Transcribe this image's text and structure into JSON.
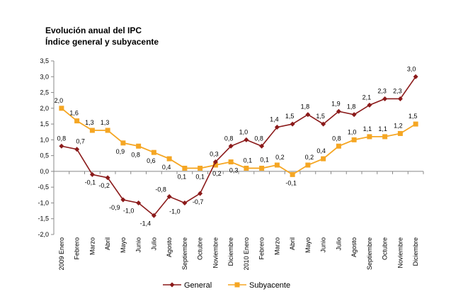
{
  "chart_data": {
    "type": "line",
    "title": "Evolución anual del IPC",
    "subtitle": "Índice general y subyacente",
    "categories": [
      "2009 Enero",
      "Febrero",
      "Marzo",
      "Abril",
      "Mayo",
      "Junio",
      "Julio",
      "Agosto",
      "Septiembre",
      "Octubre",
      "Noviembre",
      "Diciembre",
      "2010 Enero",
      "Febrero",
      "Marzo",
      "Abril",
      "Mayo",
      "Junio",
      "Julio",
      "Agosto",
      "Septiembre",
      "Octubre",
      "Noviembre",
      "Diciembre"
    ],
    "series": [
      {
        "name": "General",
        "color": "#8B1A1A",
        "marker": "diamond",
        "values": [
          0.8,
          0.7,
          -0.1,
          -0.2,
          -0.9,
          -1.0,
          -1.4,
          -0.8,
          -1.0,
          -0.7,
          0.3,
          0.8,
          1.0,
          0.8,
          1.4,
          1.5,
          1.8,
          1.5,
          1.9,
          1.8,
          2.1,
          2.3,
          2.3,
          3.0
        ],
        "labels": [
          "0,8",
          "0,7",
          "-0,1",
          "-0,2",
          "-0,9",
          "-1,0",
          "-1,4",
          "-0,8",
          "-1,0",
          "-0,7",
          "0,3",
          "0,8",
          "1,0",
          "0,8",
          "1,4",
          "1,5",
          "1,8",
          "1,5",
          "1,9",
          "1,8",
          "2,1",
          "2,3",
          "2,3",
          "3,0"
        ]
      },
      {
        "name": "Subyacente",
        "color": "#F5A623",
        "marker": "square",
        "values": [
          2.0,
          1.6,
          1.3,
          1.3,
          0.9,
          0.8,
          0.6,
          0.4,
          0.1,
          0.1,
          0.2,
          0.3,
          0.1,
          0.1,
          0.2,
          -0.1,
          0.2,
          0.4,
          0.8,
          1.0,
          1.1,
          1.1,
          1.2,
          1.5
        ],
        "labels": [
          "2,0",
          "1,6",
          "1,3",
          "1,3",
          "0,9",
          "0,8",
          "0,6",
          "0,4",
          "0,1",
          "0,1",
          "0,2",
          "0,3",
          "0,1",
          "0,1",
          "0,2",
          "-0,1",
          "0,2",
          "0,4",
          "0,8",
          "1,0",
          "1,1",
          "1,1",
          "1,2",
          "1,5"
        ]
      }
    ],
    "ylim": [
      -2.0,
      3.5
    ],
    "yticks": [
      "-2,0",
      "-1,5",
      "-1,0",
      "-0,5",
      "0,0",
      "0,5",
      "1,0",
      "1,5",
      "2,0",
      "2,5",
      "3,0",
      "3,5"
    ],
    "legend": "bottom",
    "grid": false
  }
}
